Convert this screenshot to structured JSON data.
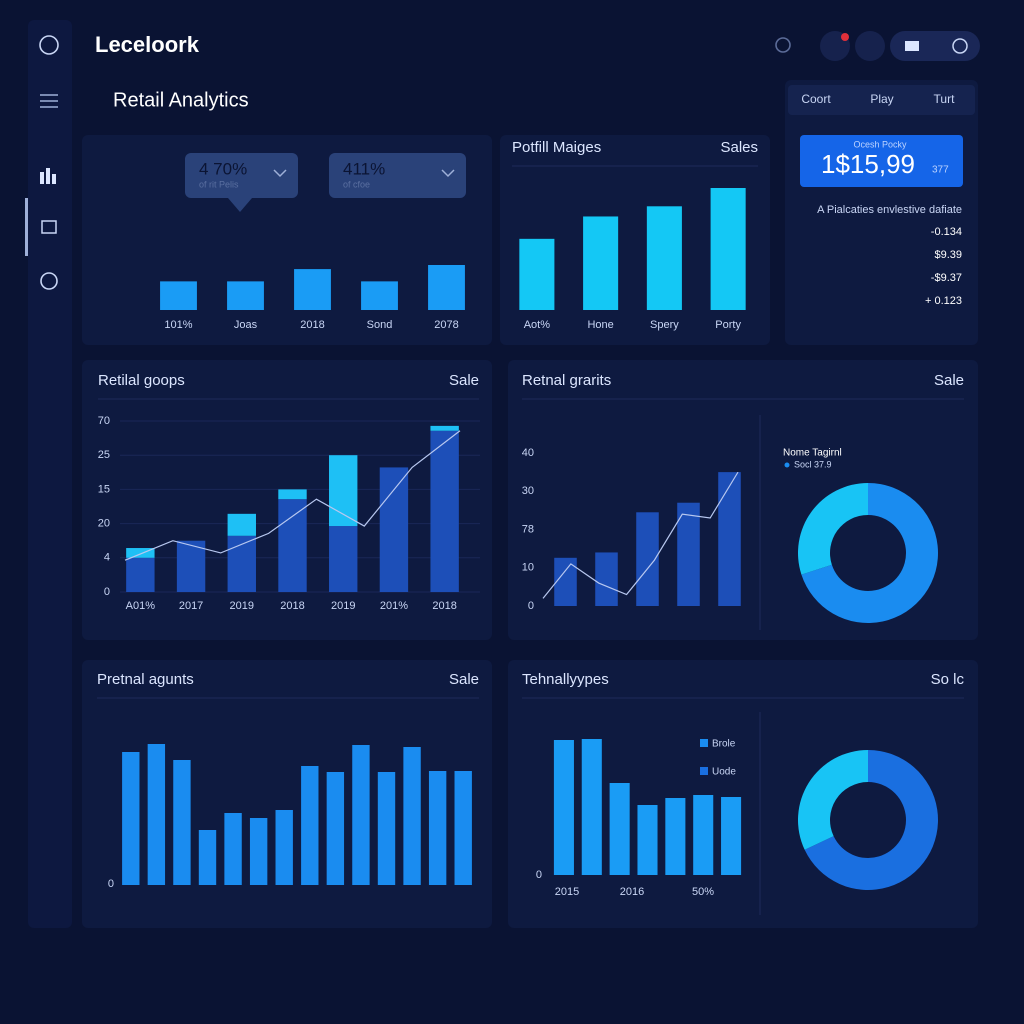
{
  "app": {
    "name": "Leceloork",
    "page_title": "Retail Analytics"
  },
  "tabs": [
    "Coort",
    "Play",
    "Turt"
  ],
  "kpi": {
    "label": "Ocesh Pocky",
    "value": "1$15,99",
    "suffix": "377",
    "note": "A Pialcaties envlestive dafiate",
    "items": [
      "-0.134",
      "$9.39",
      "-$9.37",
      "+ 0.123"
    ]
  },
  "panels": [
    {
      "type": "bar",
      "dropdowns": [
        {
          "value": "4 70%",
          "sub": "of rit Pelis"
        },
        {
          "value": "411%",
          "sub": "of cfoe"
        }
      ],
      "categories": [
        "101%",
        "Joas",
        "2018",
        "Sond",
        "2078"
      ],
      "values": [
        28,
        28,
        40,
        28,
        44
      ],
      "color": "#1a9cf5"
    },
    {
      "type": "bar",
      "title": "Potfill Maiges",
      "right_label": "Sales",
      "categories": [
        "Aot%",
        "Hone",
        "Spery",
        "Porty"
      ],
      "values": [
        70,
        92,
        102,
        120
      ],
      "color": "#14c8f5"
    },
    {
      "type": "stacked",
      "title": "Retilal goops",
      "right_label": "Sale",
      "y_labels": [
        "70",
        "25",
        "15",
        "20",
        "4",
        "0"
      ],
      "ylim": [
        0,
        70
      ],
      "categories": [
        "A01%",
        "2017",
        "2019",
        "2018",
        "2019",
        "201%",
        "2018"
      ],
      "series": [
        {
          "color": "#1d4fb8",
          "values": [
            14,
            21,
            23,
            38,
            27,
            51,
            66
          ]
        },
        {
          "color": "#1ec0f5",
          "values": [
            4,
            0,
            9,
            4,
            29,
            0,
            2
          ]
        }
      ],
      "line": [
        13,
        21,
        16,
        24,
        38,
        27,
        51,
        66
      ]
    },
    {
      "type": "bar",
      "title": "Retnal grarits",
      "right_label": "Sale",
      "y_labels": [
        "40",
        "30",
        "78",
        "10",
        "0"
      ],
      "ylim": [
        0,
        40
      ],
      "values": [
        12.6,
        14,
        24.5,
        27,
        35
      ],
      "color": "#1d4fb8",
      "line": [
        2,
        11,
        6,
        3,
        12,
        24,
        23,
        35
      ],
      "donut": {
        "title": "Nome Tagirnl",
        "legend": "Socl 37.9",
        "values": [
          70,
          30
        ],
        "colors": [
          "#1a8cf0",
          "#18c4f5"
        ]
      }
    },
    {
      "type": "bar",
      "title": "Pretnal agunts",
      "right_label": "Sale",
      "y_labels": [
        "0"
      ],
      "values": [
        133,
        141,
        125,
        55,
        72,
        67,
        75,
        119,
        113,
        140,
        113,
        138,
        114,
        114
      ],
      "color": "#1a8cf0"
    },
    {
      "type": "bar",
      "title": "Tehnallyypes",
      "right_label": "So lc",
      "y_labels": [
        "0"
      ],
      "x_labels": [
        "2015",
        "2016",
        "50%"
      ],
      "values": [
        135,
        136,
        92,
        70,
        77,
        80,
        78
      ],
      "color": "#1a9cf5",
      "legend": [
        "Brole",
        "Uode"
      ],
      "donut": {
        "values": [
          68,
          32
        ],
        "colors": [
          "#1a6fe0",
          "#18c4f5"
        ]
      }
    }
  ]
}
